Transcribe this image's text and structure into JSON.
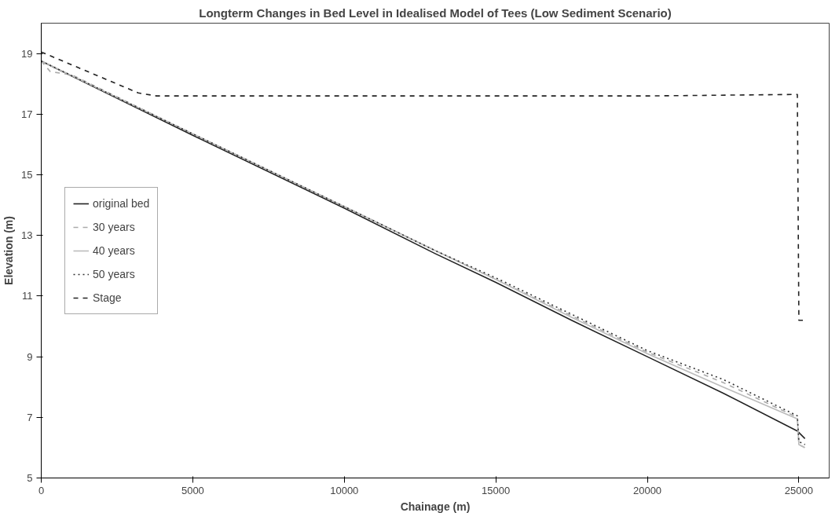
{
  "chart_data": {
    "type": "line",
    "title": "Longterm Changes in Bed Level in Idealised Model of Tees (Low Sediment Scenario)",
    "xlabel": "Chainage (m)",
    "ylabel": "Elevation (m)",
    "xlim": [
      0,
      26000
    ],
    "xticks": [
      0,
      5000,
      10000,
      15000,
      20000,
      25000
    ],
    "ylim": [
      5,
      20
    ],
    "yticks": [
      5,
      7,
      9,
      11,
      13,
      15,
      17,
      19
    ],
    "grid": false,
    "legend": "left",
    "series": [
      {
        "name": "original bed",
        "color": "#222222",
        "line_style": "solid",
        "x": [
          0,
          5000,
          10000,
          13000,
          15000,
          17500,
          20000,
          22500,
          24950,
          25000,
          25200
        ],
        "values": [
          18.75,
          16.3,
          13.9,
          12.4,
          11.45,
          10.2,
          9.0,
          7.8,
          6.55,
          6.5,
          6.3
        ]
      },
      {
        "name": "30 years",
        "color": "#aaaaaa",
        "line_style": "dashed",
        "x": [
          0,
          300,
          1000,
          5000,
          10000,
          13000,
          15000,
          17500,
          20000,
          22500,
          24950,
          25000,
          25200
        ],
        "values": [
          18.75,
          18.4,
          18.3,
          16.35,
          13.95,
          12.5,
          11.55,
          10.35,
          9.15,
          8.15,
          7.0,
          6.1,
          6.0
        ]
      },
      {
        "name": "40 years",
        "color": "#bbbbbb",
        "line_style": "solid",
        "x": [
          0,
          5000,
          10000,
          13000,
          15000,
          17500,
          20000,
          22500,
          24950,
          25000,
          25200
        ],
        "values": [
          18.75,
          16.35,
          13.95,
          12.5,
          11.55,
          10.3,
          9.1,
          8.0,
          6.95,
          6.1,
          6.0
        ]
      },
      {
        "name": "50 years",
        "color": "#333333",
        "line_style": "dotted",
        "x": [
          0,
          5000,
          10000,
          13000,
          15000,
          17500,
          20000,
          22500,
          24950,
          25000,
          25200
        ],
        "values": [
          18.75,
          16.35,
          13.95,
          12.5,
          11.6,
          10.4,
          9.2,
          8.25,
          7.05,
          6.2,
          6.1
        ]
      },
      {
        "name": "Stage",
        "color": "#222222",
        "line_style": "dashed",
        "x": [
          0,
          3200,
          3800,
          10000,
          20000,
          24950,
          25000,
          25100,
          25200
        ],
        "values": [
          19.05,
          17.7,
          17.6,
          17.6,
          17.6,
          17.65,
          10.2,
          10.2,
          10.2
        ]
      }
    ]
  }
}
